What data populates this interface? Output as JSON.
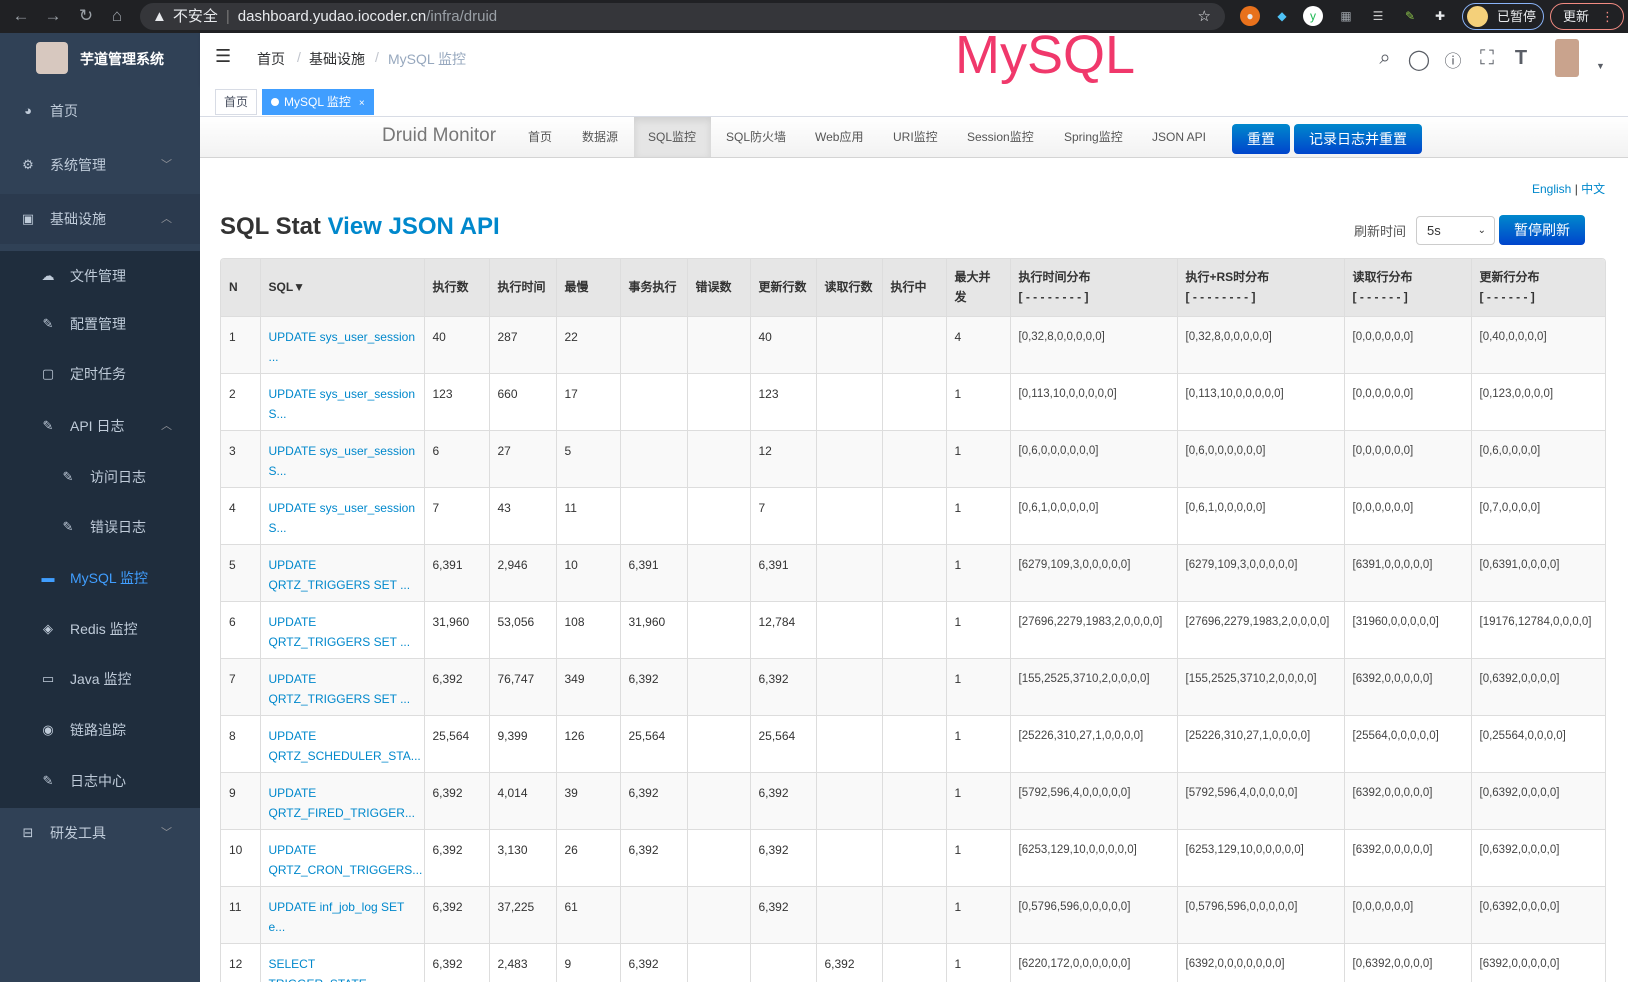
{
  "browser": {
    "insecure": "不安全",
    "url_host": "dashboard.yudao.iocoder.cn",
    "url_path": "/infra/druid",
    "paused": "已暂停",
    "update": "更新"
  },
  "sidebar": {
    "title": "芋道管理系统",
    "items": [
      {
        "label": "首页",
        "icon": "dashboard-icon"
      },
      {
        "label": "系统管理",
        "icon": "gear-icon"
      },
      {
        "label": "基础设施",
        "icon": "monitor-icon"
      },
      {
        "label": "文件管理",
        "icon": "cloud-upload-icon"
      },
      {
        "label": "配置管理",
        "icon": "edit-icon"
      },
      {
        "label": "定时任务",
        "icon": "job-icon"
      },
      {
        "label": "API 日志",
        "icon": "log-icon"
      },
      {
        "label": "访问日志",
        "icon": "log-icon"
      },
      {
        "label": "错误日志",
        "icon": "log-icon"
      },
      {
        "label": "MySQL 监控",
        "icon": "chart-icon"
      },
      {
        "label": "Redis 监控",
        "icon": "redis-icon"
      },
      {
        "label": "Java 监控",
        "icon": "server-icon"
      },
      {
        "label": "链路追踪",
        "icon": "eye-icon"
      },
      {
        "label": "日志中心",
        "icon": "log-icon"
      },
      {
        "label": "研发工具",
        "icon": "tool-icon"
      }
    ]
  },
  "header": {
    "breadcrumb": [
      "首页",
      "基础设施",
      "MySQL 监控"
    ],
    "overlay_title": "MySQL"
  },
  "tags": {
    "home": "首页",
    "active": "MySQL 监控"
  },
  "druid": {
    "brand": "Druid Monitor",
    "nav": [
      "首页",
      "数据源",
      "SQL监控",
      "SQL防火墙",
      "Web应用",
      "URI监控",
      "Session监控",
      "Spring监控",
      "JSON API"
    ],
    "reset": "重置",
    "log_reset": "记录日志并重置",
    "lang_en": "English",
    "lang_sep": "|",
    "lang_zh": "中文",
    "title": "SQL Stat",
    "title_link": "View JSON API",
    "refresh_label": "刷新时间",
    "refresh_value": "5s",
    "pause": "暂停刷新"
  },
  "table": {
    "headers": [
      "N",
      "SQL▼",
      "执行数",
      "执行时间",
      "最慢",
      "事务执行",
      "错误数",
      "更新行数",
      "读取行数",
      "执行中",
      "最大并发",
      "执行时间分布\n[ - - - - - - - - ]",
      "执行+RS时分布\n[ - - - - - - - - ]",
      "读取行分布\n[ - - - - - - ]",
      "更新行分布\n[ - - - - - - ]"
    ],
    "rows": [
      [
        "1",
        "UPDATE sys_user_session ...",
        "40",
        "287",
        "22",
        "",
        "",
        "40",
        "",
        "",
        "4",
        "[0,32,8,0,0,0,0,0]",
        "[0,32,8,0,0,0,0,0]",
        "[0,0,0,0,0,0]",
        "[0,40,0,0,0,0]"
      ],
      [
        "2",
        "UPDATE sys_user_session S...",
        "123",
        "660",
        "17",
        "",
        "",
        "123",
        "",
        "",
        "1",
        "[0,113,10,0,0,0,0,0]",
        "[0,113,10,0,0,0,0,0]",
        "[0,0,0,0,0,0]",
        "[0,123,0,0,0,0]"
      ],
      [
        "3",
        "UPDATE sys_user_session S...",
        "6",
        "27",
        "5",
        "",
        "",
        "12",
        "",
        "",
        "1",
        "[0,6,0,0,0,0,0,0]",
        "[0,6,0,0,0,0,0,0]",
        "[0,0,0,0,0,0]",
        "[0,6,0,0,0,0]"
      ],
      [
        "4",
        "UPDATE sys_user_session S...",
        "7",
        "43",
        "11",
        "",
        "",
        "7",
        "",
        "",
        "1",
        "[0,6,1,0,0,0,0,0]",
        "[0,6,1,0,0,0,0,0]",
        "[0,0,0,0,0,0]",
        "[0,7,0,0,0,0]"
      ],
      [
        "5",
        "UPDATE QRTZ_TRIGGERS SET ...",
        "6,391",
        "2,946",
        "10",
        "6,391",
        "",
        "6,391",
        "",
        "",
        "1",
        "[6279,109,3,0,0,0,0,0]",
        "[6279,109,3,0,0,0,0,0]",
        "[6391,0,0,0,0,0]",
        "[0,6391,0,0,0,0]"
      ],
      [
        "6",
        "UPDATE QRTZ_TRIGGERS SET ...",
        "31,960",
        "53,056",
        "108",
        "31,960",
        "",
        "12,784",
        "",
        "",
        "1",
        "[27696,2279,1983,2,0,0,0,0]",
        "[27696,2279,1983,2,0,0,0,0]",
        "[31960,0,0,0,0,0]",
        "[19176,12784,0,0,0,0]"
      ],
      [
        "7",
        "UPDATE QRTZ_TRIGGERS SET ...",
        "6,392",
        "76,747",
        "349",
        "6,392",
        "",
        "6,392",
        "",
        "",
        "1",
        "[155,2525,3710,2,0,0,0,0]",
        "[155,2525,3710,2,0,0,0,0]",
        "[6392,0,0,0,0,0]",
        "[0,6392,0,0,0,0]"
      ],
      [
        "8",
        "UPDATE QRTZ_SCHEDULER_STA...",
        "25,564",
        "9,399",
        "126",
        "25,564",
        "",
        "25,564",
        "",
        "",
        "1",
        "[25226,310,27,1,0,0,0,0]",
        "[25226,310,27,1,0,0,0,0]",
        "[25564,0,0,0,0,0]",
        "[0,25564,0,0,0,0]"
      ],
      [
        "9",
        "UPDATE QRTZ_FIRED_TRIGGER...",
        "6,392",
        "4,014",
        "39",
        "6,392",
        "",
        "6,392",
        "",
        "",
        "1",
        "[5792,596,4,0,0,0,0,0]",
        "[5792,596,4,0,0,0,0,0]",
        "[6392,0,0,0,0,0]",
        "[0,6392,0,0,0,0]"
      ],
      [
        "10",
        "UPDATE QRTZ_CRON_TRIGGERS...",
        "6,392",
        "3,130",
        "26",
        "6,392",
        "",
        "6,392",
        "",
        "",
        "1",
        "[6253,129,10,0,0,0,0,0]",
        "[6253,129,10,0,0,0,0,0]",
        "[6392,0,0,0,0,0]",
        "[0,6392,0,0,0,0]"
      ],
      [
        "11",
        "UPDATE inf_job_log SET e...",
        "6,392",
        "37,225",
        "61",
        "",
        "",
        "6,392",
        "",
        "",
        "1",
        "[0,5796,596,0,0,0,0,0]",
        "[0,5796,596,0,0,0,0,0]",
        "[0,0,0,0,0,0]",
        "[0,6392,0,0,0,0]"
      ],
      [
        "12",
        "SELECT TRIGGER_STATE",
        "6,392",
        "2,483",
        "9",
        "6,392",
        "",
        "",
        "6,392",
        "",
        "1",
        "[6220,172,0,0,0,0,0,0]",
        "[6392,0,0,0,0,0,0,0]",
        "[0,6392,0,0,0,0]",
        "[6392,0,0,0,0,0]"
      ]
    ]
  },
  "colors": {
    "sidebar_bg": "#304156",
    "submenu_bg": "#1f2d3d",
    "active": "#409eff",
    "link": "#0088cc",
    "overlay": "#f0386b"
  }
}
